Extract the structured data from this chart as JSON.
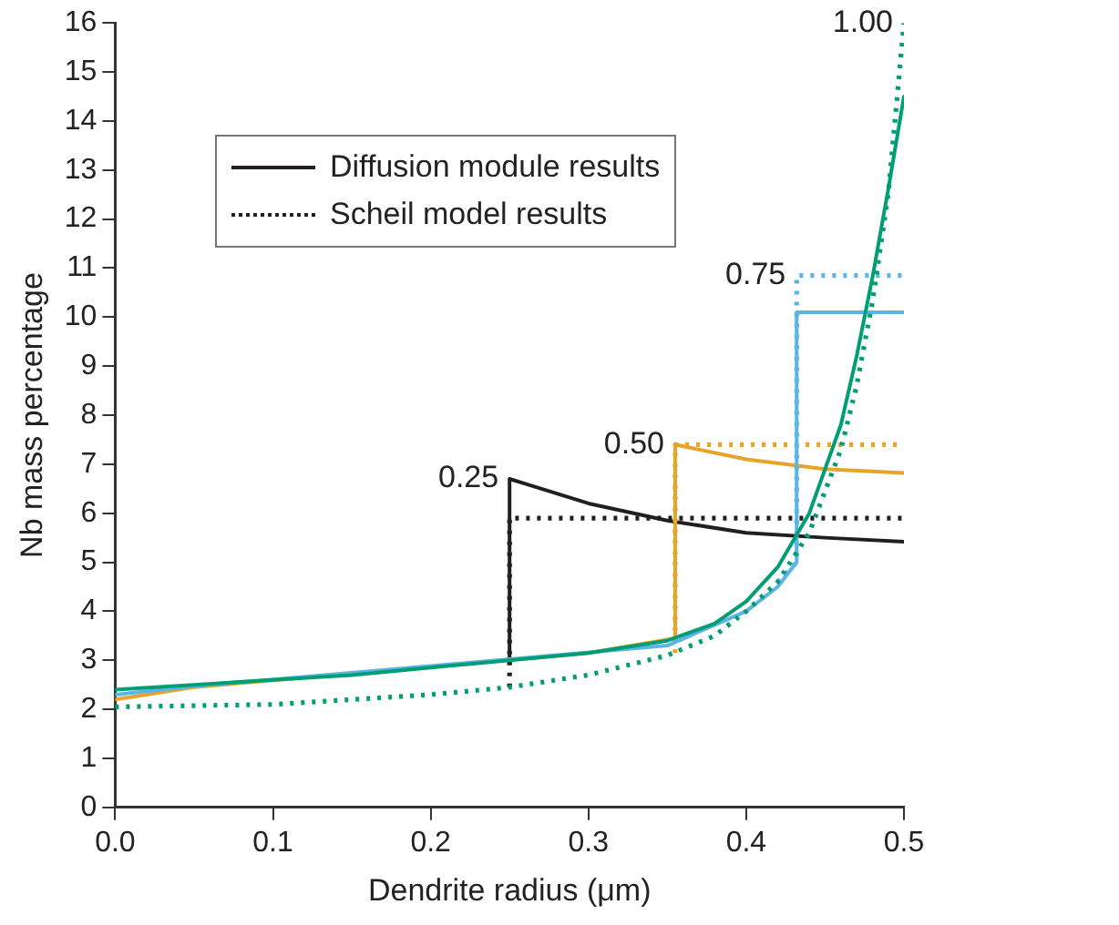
{
  "chart_data": {
    "type": "line",
    "xlabel": "Dendrite radius (μm)",
    "ylabel": "Nb mass percentage",
    "xlim": [
      0,
      0.5
    ],
    "xticks": [
      {
        "value": 0,
        "label": "0.0"
      },
      0.1,
      0.2,
      0.3,
      0.4,
      0.5
    ],
    "ylim": [
      0,
      16
    ],
    "yticks": [
      0,
      1,
      2,
      3,
      4,
      5,
      6,
      7,
      8,
      9,
      10,
      11,
      12,
      13,
      14,
      15,
      16
    ],
    "grid": false,
    "legend": "top left",
    "marker": "none",
    "series": [
      {
        "name": "Diffusion module results",
        "color": "#231f20",
        "line_style": "solid",
        "x": [
          0.25,
          0.25,
          0.26,
          0.3,
          0.35,
          0.4,
          0.45,
          0.5
        ],
        "values": [
          3.0,
          6.7,
          6.6,
          6.2,
          5.85,
          5.6,
          5.5,
          5.42
        ]
      },
      {
        "name": "Scheil model results",
        "color": "#231f20",
        "line_style": "dotted",
        "x": [
          0.25,
          0.25,
          0.5
        ],
        "values": [
          2.45,
          5.9,
          5.9
        ]
      },
      {
        "color": "#e8a32a",
        "line_style": "solid",
        "x": [
          0,
          0.05,
          0.3,
          0.355,
          0.355,
          0.4,
          0.45,
          0.5
        ],
        "values": [
          2.2,
          2.45,
          3.15,
          3.45,
          7.4,
          7.1,
          6.9,
          6.82
        ]
      },
      {
        "color": "#e8a32a",
        "line_style": "dotted",
        "x": [
          0.355,
          0.355,
          0.5
        ],
        "values": [
          3.15,
          7.4,
          7.4
        ]
      },
      {
        "color": "#5ab4e5",
        "line_style": "solid",
        "x": [
          0,
          0.05,
          0.35,
          0.4,
          0.42,
          0.432,
          0.432,
          0.5
        ],
        "values": [
          2.3,
          2.47,
          3.3,
          4.0,
          4.5,
          5.0,
          10.1,
          10.1
        ]
      },
      {
        "color": "#5ab4e5",
        "line_style": "dotted",
        "x": [
          0.42,
          0.432,
          0.432,
          0.5
        ],
        "values": [
          4.6,
          5.0,
          10.85,
          10.85
        ]
      },
      {
        "color": "#009e73",
        "line_style": "solid",
        "x": [
          0,
          0.05,
          0.1,
          0.15,
          0.2,
          0.25,
          0.3,
          0.35,
          0.38,
          0.4,
          0.42,
          0.44,
          0.46,
          0.47,
          0.48,
          0.49,
          0.5
        ],
        "values": [
          2.4,
          2.5,
          2.6,
          2.7,
          2.85,
          3.0,
          3.15,
          3.4,
          3.75,
          4.2,
          4.9,
          6.0,
          7.8,
          9.2,
          10.8,
          12.6,
          14.5
        ]
      },
      {
        "color": "#009e73",
        "line_style": "dotted",
        "x": [
          0,
          0.1,
          0.15,
          0.2,
          0.25,
          0.3,
          0.35,
          0.38,
          0.4,
          0.42,
          0.44,
          0.46,
          0.47,
          0.48,
          0.49,
          0.5
        ],
        "values": [
          2.05,
          2.1,
          2.2,
          2.3,
          2.45,
          2.7,
          3.1,
          3.5,
          4.0,
          4.6,
          5.6,
          7.3,
          8.6,
          10.3,
          12.5,
          16
        ]
      }
    ],
    "annotations": [
      {
        "text": "0.25",
        "x": 0.25,
        "y": 6.7
      },
      {
        "text": "0.50",
        "x": 0.355,
        "y": 7.4
      },
      {
        "text": "0.75",
        "x": 0.432,
        "y": 10.85
      },
      {
        "text": "1.00",
        "x": 0.5,
        "y": 16
      }
    ]
  }
}
